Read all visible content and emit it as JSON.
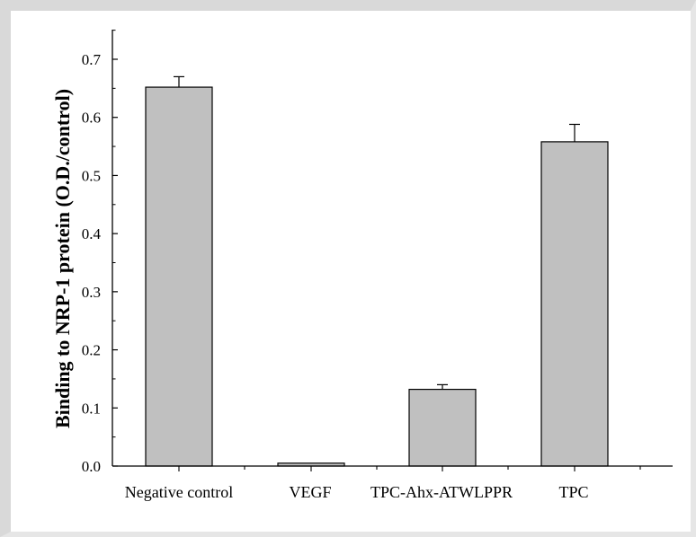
{
  "chart_data": {
    "type": "bar",
    "categories": [
      "Negative control",
      "VEGF",
      "TPC-Ahx-ATWLPPR",
      "TPC"
    ],
    "values": [
      0.652,
      0.005,
      0.132,
      0.558
    ],
    "errors": [
      0.018,
      0.0,
      0.008,
      0.03
    ],
    "title": "",
    "xlabel": "",
    "ylabel": "Binding to NRP-1 protein (O.D./control)",
    "ylim": [
      0.0,
      0.75
    ],
    "yticks": [
      0.0,
      0.1,
      0.2,
      0.3,
      0.4,
      0.5,
      0.6,
      0.7
    ],
    "ytick_labels": [
      "0.0",
      "0.1",
      "0.2",
      "0.3",
      "0.4",
      "0.5",
      "0.6",
      "0.7"
    ],
    "grid": false,
    "legend": "none",
    "colors": {
      "bar_fill": "#c0c0c0",
      "bar_stroke": "#000000",
      "axis": "#000000",
      "frame": "#d9d9d9"
    }
  }
}
